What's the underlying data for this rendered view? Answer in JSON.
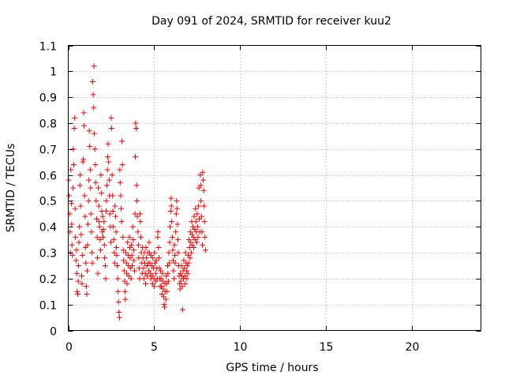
{
  "chart_data": {
    "type": "scatter",
    "title": "Day 091 of 2024, SRMTID for receiver kuu2",
    "xlabel": "GPS time / hours",
    "ylabel": "SRMTID / TECUs",
    "xlim": [
      0,
      24
    ],
    "ylim": [
      0,
      1.1
    ],
    "xticks": [
      0,
      5,
      10,
      15,
      20
    ],
    "xtick_labels": [
      "0",
      "5",
      "10",
      "15",
      "20"
    ],
    "yticks": [
      0,
      0.1,
      0.2,
      0.3,
      0.4,
      0.5,
      0.6,
      0.7,
      0.8,
      0.9,
      1,
      1.1
    ],
    "ytick_labels": [
      "0",
      "0.1",
      "0.2",
      "0.3",
      "0.4",
      "0.5",
      "0.6",
      "0.7",
      "0.8",
      "0.9",
      "1",
      "1.1"
    ],
    "grid": true,
    "marker": "+",
    "color": "#ff0000",
    "series": [
      {
        "name": "SRMTID",
        "points": [
          [
            0.02,
            0.58
          ],
          [
            0.05,
            0.52
          ],
          [
            0.08,
            0.45
          ],
          [
            0.1,
            0.38
          ],
          [
            0.12,
            0.3
          ],
          [
            0.15,
            0.62
          ],
          [
            0.18,
            0.49
          ],
          [
            0.2,
            0.41
          ],
          [
            0.22,
            0.33
          ],
          [
            0.25,
            0.29
          ],
          [
            0.28,
            0.55
          ],
          [
            0.3,
            0.7
          ],
          [
            0.32,
            0.64
          ],
          [
            0.35,
            0.78
          ],
          [
            0.38,
            0.82
          ],
          [
            0.4,
            0.47
          ],
          [
            0.42,
            0.36
          ],
          [
            0.45,
            0.27
          ],
          [
            0.48,
            0.31
          ],
          [
            0.5,
            0.22
          ],
          [
            0.52,
            0.15
          ],
          [
            0.55,
            0.14
          ],
          [
            0.58,
            0.19
          ],
          [
            0.6,
            0.25
          ],
          [
            0.62,
            0.34
          ],
          [
            0.65,
            0.4
          ],
          [
            0.68,
            0.56
          ],
          [
            0.7,
            0.6
          ],
          [
            0.72,
            0.48
          ],
          [
            0.75,
            0.37
          ],
          [
            0.78,
            0.21
          ],
          [
            0.8,
            0.18
          ],
          [
            0.82,
            0.29
          ],
          [
            0.85,
            0.65
          ],
          [
            0.88,
            0.66
          ],
          [
            0.9,
            0.84
          ],
          [
            0.92,
            0.79
          ],
          [
            0.95,
            0.52
          ],
          [
            0.98,
            0.44
          ],
          [
            1.0,
            0.32
          ],
          [
            1.02,
            0.26
          ],
          [
            1.05,
            0.17
          ],
          [
            1.08,
            0.14
          ],
          [
            1.1,
            0.23
          ],
          [
            1.12,
            0.33
          ],
          [
            1.15,
            0.41
          ],
          [
            1.18,
            0.5
          ],
          [
            1.2,
            0.58
          ],
          [
            1.22,
            0.77
          ],
          [
            1.25,
            0.71
          ],
          [
            1.28,
            0.62
          ],
          [
            1.3,
            0.55
          ],
          [
            1.32,
            0.45
          ],
          [
            1.35,
            0.38
          ],
          [
            1.38,
            0.3
          ],
          [
            1.4,
            0.26
          ],
          [
            1.42,
            0.96
          ],
          [
            1.45,
            0.91
          ],
          [
            1.48,
            0.86
          ],
          [
            1.5,
            1.02
          ],
          [
            1.52,
            0.76
          ],
          [
            1.55,
            0.7
          ],
          [
            1.58,
            0.64
          ],
          [
            1.6,
            0.57
          ],
          [
            1.62,
            0.5
          ],
          [
            1.65,
            0.43
          ],
          [
            1.68,
            0.36
          ],
          [
            1.7,
            0.28
          ],
          [
            1.72,
            0.22
          ],
          [
            1.75,
            0.55
          ],
          [
            1.78,
            0.48
          ],
          [
            1.8,
            0.42
          ],
          [
            1.82,
            0.4
          ],
          [
            1.85,
            0.35
          ],
          [
            1.88,
            0.31
          ],
          [
            1.9,
            0.6
          ],
          [
            1.92,
            0.53
          ],
          [
            1.95,
            0.46
          ],
          [
            1.98,
            0.38
          ],
          [
            2.0,
            0.44
          ],
          [
            2.02,
            0.36
          ],
          [
            2.05,
            0.39
          ],
          [
            2.08,
            0.42
          ],
          [
            2.1,
            0.33
          ],
          [
            2.12,
            0.28
          ],
          [
            2.15,
            0.25
          ],
          [
            2.18,
            0.2
          ],
          [
            2.2,
            0.46
          ],
          [
            2.22,
            0.5
          ],
          [
            2.25,
            0.56
          ],
          [
            2.28,
            0.62
          ],
          [
            2.3,
            0.67
          ],
          [
            2.32,
            0.72
          ],
          [
            2.35,
            0.65
          ],
          [
            2.38,
            0.58
          ],
          [
            2.4,
            0.52
          ],
          [
            2.42,
            0.45
          ],
          [
            2.45,
            0.4
          ],
          [
            2.48,
            0.34
          ],
          [
            2.5,
            0.82
          ],
          [
            2.52,
            0.78
          ],
          [
            2.55,
            0.6
          ],
          [
            2.58,
            0.52
          ],
          [
            2.6,
            0.46
          ],
          [
            2.62,
            0.4
          ],
          [
            2.65,
            0.35
          ],
          [
            2.68,
            0.3
          ],
          [
            2.7,
            0.26
          ],
          [
            2.72,
            0.48
          ],
          [
            2.75,
            0.44
          ],
          [
            2.78,
            0.38
          ],
          [
            2.8,
            0.32
          ],
          [
            2.82,
            0.29
          ],
          [
            2.85,
            0.25
          ],
          [
            2.88,
            0.2
          ],
          [
            2.9,
            0.15
          ],
          [
            2.92,
            0.11
          ],
          [
            2.95,
            0.07
          ],
          [
            2.98,
            0.05
          ],
          [
            3.0,
            0.62
          ],
          [
            3.02,
            0.57
          ],
          [
            3.05,
            0.52
          ],
          [
            3.08,
            0.47
          ],
          [
            3.1,
            0.42
          ],
          [
            3.12,
            0.73
          ],
          [
            3.15,
            0.64
          ],
          [
            3.18,
            0.36
          ],
          [
            3.2,
            0.31
          ],
          [
            3.22,
            0.27
          ],
          [
            3.25,
            0.23
          ],
          [
            3.28,
            0.19
          ],
          [
            3.3,
            0.15
          ],
          [
            3.32,
            0.12
          ],
          [
            3.35,
            0.3
          ],
          [
            3.38,
            0.26
          ],
          [
            3.4,
            0.22
          ],
          [
            3.42,
            0.18
          ],
          [
            3.45,
            0.34
          ],
          [
            3.48,
            0.29
          ],
          [
            3.5,
            0.25
          ],
          [
            3.52,
            0.21
          ],
          [
            3.55,
            0.36
          ],
          [
            3.58,
            0.32
          ],
          [
            3.6,
            0.28
          ],
          [
            3.62,
            0.24
          ],
          [
            3.65,
            0.2
          ],
          [
            3.68,
            0.33
          ],
          [
            3.7,
            0.29
          ],
          [
            3.72,
            0.25
          ],
          [
            3.75,
            0.4
          ],
          [
            3.78,
            0.35
          ],
          [
            3.8,
            0.31
          ],
          [
            3.82,
            0.27
          ],
          [
            3.85,
            0.23
          ],
          [
            3.88,
            0.45
          ],
          [
            3.9,
            0.67
          ],
          [
            3.92,
            0.8
          ],
          [
            3.95,
            0.78
          ],
          [
            3.98,
            0.56
          ],
          [
            4.0,
            0.5
          ],
          [
            4.02,
            0.44
          ],
          [
            4.05,
            0.38
          ],
          [
            4.08,
            0.33
          ],
          [
            4.1,
            0.28
          ],
          [
            4.12,
            0.24
          ],
          [
            4.15,
            0.2
          ],
          [
            4.18,
            0.45
          ],
          [
            4.2,
            0.42
          ],
          [
            4.22,
            0.36
          ],
          [
            4.25,
            0.3
          ],
          [
            4.28,
            0.26
          ],
          [
            4.3,
            0.22
          ],
          [
            4.32,
            0.32
          ],
          [
            4.35,
            0.28
          ],
          [
            4.38,
            0.24
          ],
          [
            4.4,
            0.2
          ],
          [
            4.42,
            0.3
          ],
          [
            4.45,
            0.26
          ],
          [
            4.48,
            0.22
          ],
          [
            4.5,
            0.18
          ],
          [
            4.52,
            0.32
          ],
          [
            4.55,
            0.28
          ],
          [
            4.58,
            0.25
          ],
          [
            4.6,
            0.21
          ],
          [
            4.62,
            0.3
          ],
          [
            4.65,
            0.26
          ],
          [
            4.68,
            0.23
          ],
          [
            4.7,
            0.34
          ],
          [
            4.72,
            0.3
          ],
          [
            4.75,
            0.26
          ],
          [
            4.78,
            0.22
          ],
          [
            4.8,
            0.2
          ],
          [
            4.82,
            0.29
          ],
          [
            4.85,
            0.25
          ],
          [
            4.88,
            0.21
          ],
          [
            4.9,
            0.18
          ],
          [
            4.92,
            0.28
          ],
          [
            4.95,
            0.24
          ],
          [
            4.98,
            0.2
          ],
          [
            5.0,
            0.17
          ],
          [
            5.02,
            0.3
          ],
          [
            5.05,
            0.26
          ],
          [
            5.08,
            0.22
          ],
          [
            5.1,
            0.19
          ],
          [
            5.12,
            0.27
          ],
          [
            5.15,
            0.24
          ],
          [
            5.18,
            0.2
          ],
          [
            5.2,
            0.36
          ],
          [
            5.22,
            0.38
          ],
          [
            5.25,
            0.32
          ],
          [
            5.28,
            0.28
          ],
          [
            5.3,
            0.24
          ],
          [
            5.32,
            0.2
          ],
          [
            5.35,
            0.17
          ],
          [
            5.38,
            0.23
          ],
          [
            5.4,
            0.2
          ],
          [
            5.42,
            0.17
          ],
          [
            5.45,
            0.14
          ],
          [
            5.48,
            0.22
          ],
          [
            5.5,
            0.19
          ],
          [
            5.52,
            0.16
          ],
          [
            5.55,
            0.13
          ],
          [
            5.58,
            0.1
          ],
          [
            5.6,
            0.09
          ],
          [
            5.62,
            0.18
          ],
          [
            5.65,
            0.15
          ],
          [
            5.68,
            0.12
          ],
          [
            5.7,
            0.21
          ],
          [
            5.72,
            0.18
          ],
          [
            5.75,
            0.15
          ],
          [
            5.78,
            0.25
          ],
          [
            5.8,
            0.22
          ],
          [
            5.82,
            0.19
          ],
          [
            5.85,
            0.3
          ],
          [
            5.88,
            0.26
          ],
          [
            5.9,
            0.34
          ],
          [
            5.92,
            0.4
          ],
          [
            5.95,
            0.46
          ],
          [
            5.98,
            0.51
          ],
          [
            6.0,
            0.48
          ],
          [
            6.02,
            0.42
          ],
          [
            6.05,
            0.36
          ],
          [
            6.08,
            0.31
          ],
          [
            6.1,
            0.27
          ],
          [
            6.12,
            0.23
          ],
          [
            6.15,
            0.2
          ],
          [
            6.18,
            0.33
          ],
          [
            6.2,
            0.29
          ],
          [
            6.22,
            0.26
          ],
          [
            6.25,
            0.38
          ],
          [
            6.28,
            0.45
          ],
          [
            6.3,
            0.5
          ],
          [
            6.32,
            0.47
          ],
          [
            6.35,
            0.41
          ],
          [
            6.38,
            0.35
          ],
          [
            6.4,
            0.3
          ],
          [
            6.42,
            0.25
          ],
          [
            6.45,
            0.21
          ],
          [
            6.48,
            0.18
          ],
          [
            6.5,
            0.16
          ],
          [
            6.52,
            0.22
          ],
          [
            6.55,
            0.19
          ],
          [
            6.58,
            0.25
          ],
          [
            6.6,
            0.21
          ],
          [
            6.62,
            0.17
          ],
          [
            6.65,
            0.08
          ],
          [
            6.68,
            0.23
          ],
          [
            6.7,
            0.2
          ],
          [
            6.72,
            0.27
          ],
          [
            6.75,
            0.24
          ],
          [
            6.78,
            0.21
          ],
          [
            6.8,
            0.18
          ],
          [
            6.82,
            0.3
          ],
          [
            6.85,
            0.26
          ],
          [
            6.88,
            0.23
          ],
          [
            6.9,
            0.2
          ],
          [
            6.92,
            0.25
          ],
          [
            6.95,
            0.22
          ],
          [
            6.98,
            0.29
          ],
          [
            7.0,
            0.26
          ],
          [
            7.02,
            0.35
          ],
          [
            7.05,
            0.32
          ],
          [
            7.08,
            0.28
          ],
          [
            7.1,
            0.38
          ],
          [
            7.12,
            0.34
          ],
          [
            7.15,
            0.3
          ],
          [
            7.18,
            0.42
          ],
          [
            7.2,
            0.37
          ],
          [
            7.22,
            0.33
          ],
          [
            7.25,
            0.4
          ],
          [
            7.28,
            0.36
          ],
          [
            7.3,
            0.32
          ],
          [
            7.32,
            0.44
          ],
          [
            7.35,
            0.39
          ],
          [
            7.38,
            0.35
          ],
          [
            7.4,
            0.47
          ],
          [
            7.42,
            0.42
          ],
          [
            7.45,
            0.38
          ],
          [
            7.48,
            0.34
          ],
          [
            7.5,
            0.45
          ],
          [
            7.52,
            0.4
          ],
          [
            7.55,
            0.36
          ],
          [
            7.58,
            0.48
          ],
          [
            7.6,
            0.55
          ],
          [
            7.62,
            0.43
          ],
          [
            7.65,
            0.38
          ],
          [
            7.68,
            0.6
          ],
          [
            7.7,
            0.56
          ],
          [
            7.72,
            0.5
          ],
          [
            7.75,
            0.44
          ],
          [
            7.78,
            0.38
          ],
          [
            7.8,
            0.33
          ],
          [
            7.82,
            0.61
          ],
          [
            7.85,
            0.58
          ],
          [
            7.88,
            0.54
          ],
          [
            7.9,
            0.48
          ],
          [
            7.92,
            0.42
          ],
          [
            7.95,
            0.36
          ],
          [
            7.98,
            0.31
          ]
        ]
      }
    ]
  }
}
